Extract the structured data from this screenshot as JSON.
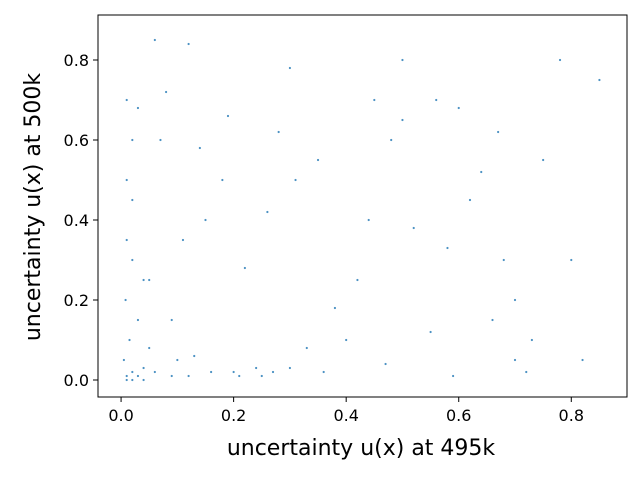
{
  "chart_data": {
    "type": "scatter",
    "xlabel": "uncertainty u(x) at 495k",
    "ylabel": "uncertainty u(x) at 500k",
    "color": "#1f77b4",
    "xlim": [
      -0.041,
      0.899
    ],
    "ylim": [
      -0.0425,
      0.9125
    ],
    "xticks": [
      {
        "value": 0,
        "label": "0.0"
      },
      0.2,
      0.4,
      0.6,
      0.8
    ],
    "yticks": [
      {
        "value": 0,
        "label": "0.0"
      },
      0.2,
      0.4,
      0.6,
      0.8
    ],
    "x": [
      0.01,
      0.02,
      0.005,
      0.03,
      0.015,
      0.04,
      0.008,
      0.06,
      0.02,
      0.01,
      0.05,
      0.12,
      0.09,
      0.2,
      0.25,
      0.3,
      0.15,
      0.07,
      0.03,
      0.01,
      0.35,
      0.42,
      0.5,
      0.55,
      0.62,
      0.68,
      0.7,
      0.45,
      0.38,
      0.28,
      0.18,
      0.11,
      0.05,
      0.02,
      0.6,
      0.66,
      0.72,
      0.52,
      0.33,
      0.22,
      0.08,
      0.14,
      0.26,
      0.4,
      0.48,
      0.58,
      0.64,
      0.7,
      0.03,
      0.01,
      0.02,
      0.04,
      0.1,
      0.16,
      0.24,
      0.31,
      0.44,
      0.56,
      0.67,
      0.73,
      0.75,
      0.78,
      0.82,
      0.85,
      0.8,
      0.5,
      0.3,
      0.12,
      0.06,
      0.36,
      0.47,
      0.59,
      0.19,
      0.02,
      0.01,
      0.04,
      0.09,
      0.13,
      0.21,
      0.27
    ],
    "y": [
      0.01,
      0.02,
      0.05,
      0.01,
      0.1,
      0.03,
      0.2,
      0.02,
      0.3,
      0.5,
      0.08,
      0.01,
      0.15,
      0.02,
      0.01,
      0.03,
      0.4,
      0.6,
      0.68,
      0.7,
      0.55,
      0.25,
      0.65,
      0.12,
      0.45,
      0.3,
      0.05,
      0.7,
      0.18,
      0.62,
      0.5,
      0.35,
      0.25,
      0.45,
      0.68,
      0.15,
      0.02,
      0.38,
      0.08,
      0.28,
      0.72,
      0.58,
      0.42,
      0.1,
      0.6,
      0.33,
      0.52,
      0.2,
      0.15,
      0.35,
      0.6,
      0.25,
      0.05,
      0.02,
      0.03,
      0.5,
      0.4,
      0.7,
      0.62,
      0.1,
      0.55,
      0.8,
      0.05,
      0.75,
      0.3,
      0.8,
      0.78,
      0.84,
      0.85,
      0.02,
      0.04,
      0.01,
      0.66,
      0.0,
      0.0,
      0.0,
      0.01,
      0.06,
      0.01,
      0.02
    ]
  }
}
